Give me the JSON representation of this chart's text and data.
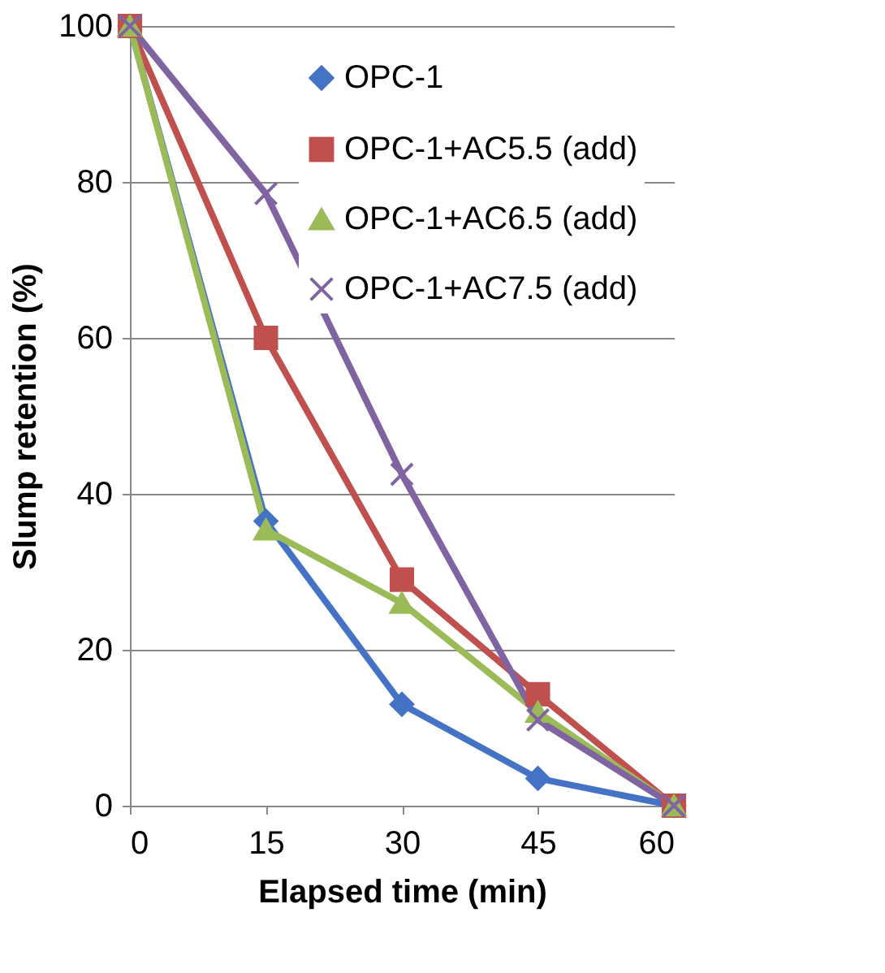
{
  "chart_data": {
    "type": "line",
    "xlabel": "Elapsed time (min)",
    "ylabel": "Slump retention (%)",
    "x": [
      0,
      15,
      30,
      45,
      60
    ],
    "xlim": [
      0,
      60
    ],
    "xticks": [
      0,
      15,
      30,
      45,
      60
    ],
    "ylim": [
      0,
      100
    ],
    "yticks": [
      0,
      20,
      40,
      60,
      80,
      100
    ],
    "grid": "y",
    "legend": "top right",
    "line_style": "solid",
    "series": [
      {
        "name": "OPC-1",
        "color": "#4472c4",
        "marker": "diamond",
        "values": [
          100,
          36.5,
          13,
          3.5,
          0
        ]
      },
      {
        "name": "OPC-1+AC5.5 (add)",
        "color": "#c0504d",
        "marker": "square",
        "values": [
          100,
          60,
          29,
          14.3,
          0
        ]
      },
      {
        "name": "OPC-1+AC6.5 (add)",
        "color": "#9bbb59",
        "marker": "triangle",
        "values": [
          100,
          35.4,
          26,
          12,
          0
        ]
      },
      {
        "name": "OPC-1+AC7.5 (add)",
        "color": "#8064a2",
        "marker": "cross",
        "values": [
          100,
          78.5,
          42.5,
          11,
          0
        ]
      }
    ]
  }
}
